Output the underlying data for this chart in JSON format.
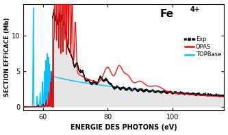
{
  "title_main": "Fe",
  "title_super": "4+",
  "xlabel": "ENERGIE DES PHOTONS (eV)",
  "ylabel": "SECTION EFFICACE (Mb)",
  "xlim": [
    54,
    116
  ],
  "ylim": [
    -0.5,
    14.5
  ],
  "yticks": [
    0,
    5,
    10
  ],
  "xticks": [
    60,
    80,
    100
  ],
  "legend_labels": [
    "Exp",
    "OPAS",
    "TOPBase"
  ],
  "colors": {
    "exp": "#111111",
    "opas": "#ff0000",
    "topbase": "#00bfff",
    "fill": "#d3d3d3"
  },
  "background": "#ffffff",
  "seed": 12
}
